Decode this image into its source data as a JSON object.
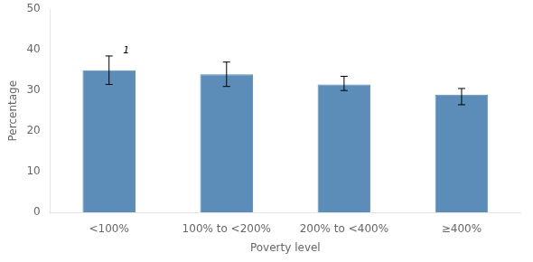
{
  "chart_data": {
    "type": "bar",
    "categories": [
      "<100%",
      "100% to <200%",
      "200% to <400%",
      "≥400%"
    ],
    "values": [
      35.0,
      34.0,
      31.5,
      29.0
    ],
    "error_low": [
      3.5,
      3.0,
      1.5,
      2.5
    ],
    "error_high": [
      3.5,
      3.0,
      2.0,
      1.5
    ],
    "color": "#5b8db8",
    "xlabel": "Poverty level",
    "ylabel": "Percentage",
    "ylim": [
      0,
      50
    ],
    "yticks": [
      0,
      10,
      20,
      30,
      40,
      50
    ],
    "grid": false,
    "annotations": [
      {
        "text": "1",
        "x": "<100%",
        "y": 38.5
      }
    ]
  }
}
